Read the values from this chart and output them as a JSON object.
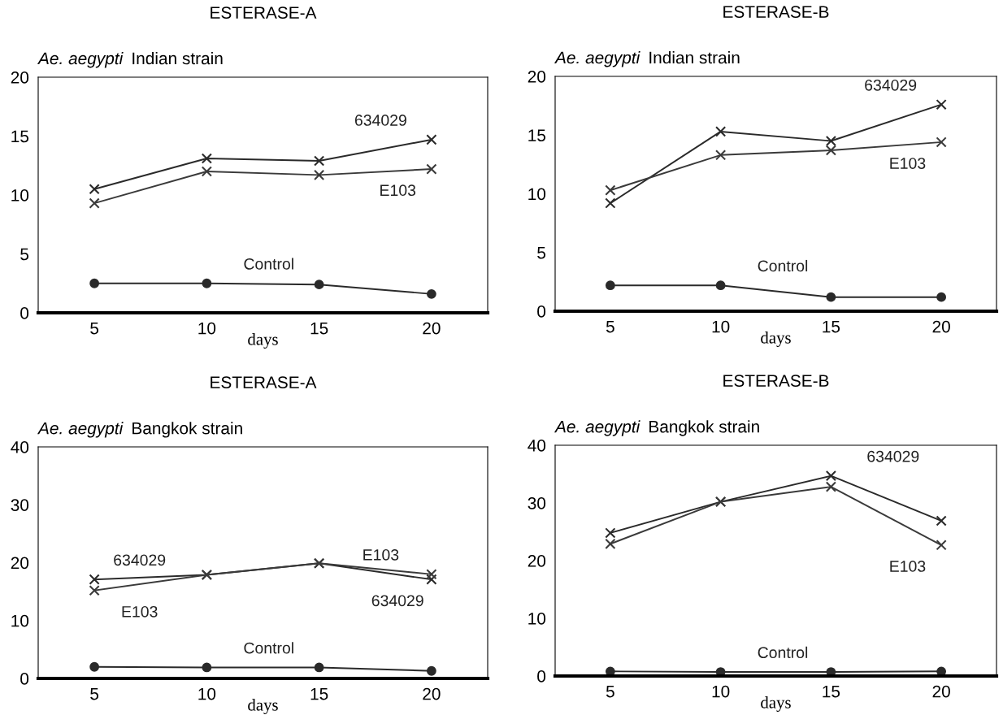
{
  "chart_data": [
    {
      "type": "line",
      "title": "ESTERASE-A",
      "subtitle": "Ae. aegypti  Indian strain",
      "xlabel": "days",
      "x": [
        5,
        10,
        15,
        20
      ],
      "xlim": [
        2.5,
        22.5
      ],
      "xticks": [
        5,
        10,
        15,
        20
      ],
      "ylim": [
        0,
        20
      ],
      "yticks": [
        0,
        5,
        10,
        15,
        20
      ],
      "grid": false,
      "series": [
        {
          "color": "#2a2a2a",
          "marker": "cross",
          "values": [
            10.5,
            13.1,
            12.9,
            14.7
          ]
        },
        {
          "color": "#3a3a3a",
          "marker": "cross",
          "values": [
            9.3,
            12.0,
            11.7,
            12.2
          ]
        },
        {
          "color": "#2a2a2a",
          "marker": "circle",
          "values": [
            2.5,
            2.5,
            2.4,
            1.6
          ]
        }
      ],
      "annotations": [
        {
          "text": "634029",
          "x": 20,
          "y": 14.7
        },
        {
          "text": "E103",
          "x": 20,
          "y": 12.2
        },
        {
          "text": "Control",
          "x": 10,
          "y": 2.5
        }
      ]
    },
    {
      "type": "line",
      "title": "ESTERASE-B",
      "subtitle": "Ae. aegypti  Indian strain",
      "xlabel": "days",
      "x": [
        5,
        10,
        15,
        20
      ],
      "xlim": [
        2.5,
        22.5
      ],
      "xticks": [
        5,
        10,
        15,
        20
      ],
      "ylim": [
        0,
        20
      ],
      "yticks": [
        0,
        5,
        10,
        15,
        20
      ],
      "grid": false,
      "series": [
        {
          "color": "#2a2a2a",
          "marker": "cross",
          "values": [
            9.2,
            15.3,
            14.5,
            17.6
          ]
        },
        {
          "color": "#3a3a3a",
          "marker": "cross",
          "values": [
            10.3,
            13.3,
            13.7,
            14.4
          ]
        },
        {
          "color": "#2a2a2a",
          "marker": "circle",
          "values": [
            2.2,
            2.2,
            1.2,
            1.2
          ]
        }
      ],
      "annotations": [
        {
          "text": "634029",
          "x": 20,
          "y": 17.6
        },
        {
          "text": "E103",
          "x": 20,
          "y": 14.4
        },
        {
          "text": "Control",
          "x": 10,
          "y": 2.2
        }
      ]
    },
    {
      "type": "line",
      "title": "ESTERASE-A",
      "subtitle": "Ae. aegypti  Bangkok strain",
      "xlabel": "days",
      "x": [
        5,
        10,
        15,
        20
      ],
      "xlim": [
        2.5,
        22.5
      ],
      "xticks": [
        5,
        10,
        15,
        20
      ],
      "ylim": [
        0,
        40
      ],
      "yticks": [
        0,
        10,
        20,
        30,
        40
      ],
      "grid": false,
      "series": [
        {
          "color": "#2a2a2a",
          "marker": "cross",
          "values": [
            17.1,
            17.9,
            19.9,
            17.1
          ]
        },
        {
          "color": "#3a3a3a",
          "marker": "cross",
          "values": [
            15.2,
            17.9,
            19.9,
            18.0
          ]
        },
        {
          "color": "#2a2a2a",
          "marker": "circle",
          "values": [
            2.0,
            1.9,
            1.9,
            1.3
          ]
        }
      ],
      "annotations": [
        {
          "text": "634029",
          "x": 5,
          "y": 17.1
        },
        {
          "text": "E103",
          "x": 5,
          "y": 15.2
        },
        {
          "text": "E103",
          "x": 20,
          "y": 18.0
        },
        {
          "text": "634029",
          "x": 20,
          "y": 17.1
        },
        {
          "text": "Control",
          "x": 10,
          "y": 1.9
        }
      ]
    },
    {
      "type": "line",
      "title": "ESTERASE-B",
      "subtitle": "Ae. aegypti  Bangkok strain",
      "xlabel": "days",
      "x": [
        5,
        10,
        15,
        20
      ],
      "xlim": [
        2.5,
        22.5
      ],
      "xticks": [
        5,
        10,
        15,
        20
      ],
      "ylim": [
        0,
        40
      ],
      "yticks": [
        0,
        10,
        20,
        30,
        40
      ],
      "grid": false,
      "series": [
        {
          "color": "#2a2a2a",
          "marker": "cross",
          "values": [
            24.8,
            30.2,
            34.7,
            26.9
          ]
        },
        {
          "color": "#3a3a3a",
          "marker": "cross",
          "values": [
            22.9,
            30.2,
            32.8,
            22.7
          ]
        },
        {
          "color": "#2a2a2a",
          "marker": "circle",
          "values": [
            0.8,
            0.7,
            0.7,
            0.8
          ]
        }
      ],
      "annotations": [
        {
          "text": "634029",
          "x": 15,
          "y": 34.7
        },
        {
          "text": "E103",
          "x": 20,
          "y": 22.7
        },
        {
          "text": "Control",
          "x": 10,
          "y": 0.7
        }
      ]
    }
  ]
}
